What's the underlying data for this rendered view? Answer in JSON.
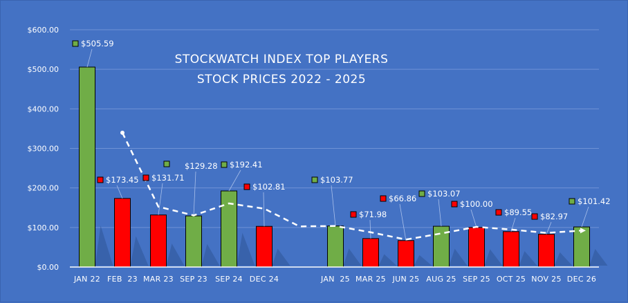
{
  "chart_data": {
    "type": "bar",
    "title": "STOCKWATCH INDEX TOP PLAYERS",
    "subtitle": "STOCK PRICES 2022 - 2025",
    "xlabel": "",
    "ylabel": "",
    "ylim": [
      0,
      600
    ],
    "yticks": [
      0,
      100,
      200,
      300,
      400,
      500,
      600
    ],
    "ytick_labels": [
      "$0.00",
      "$100.00",
      "$200.00",
      "$300.00",
      "$400.00",
      "$500.00",
      "$600.00"
    ],
    "grid": true,
    "legend": "none",
    "categories": [
      "JAN 22",
      "FEB  23",
      "MAR 23",
      "SEP 23",
      "SEP 24",
      "DEC 24",
      "",
      "JAN  25",
      "MAR 25",
      "JUN 25",
      "AUG 25",
      "SEP 25",
      "OCT 25",
      "NOV 25",
      "DEC 26"
    ],
    "values": [
      505.59,
      173.45,
      131.71,
      129.28,
      192.41,
      102.81,
      null,
      103.77,
      71.98,
      66.86,
      103.07,
      100.0,
      89.55,
      82.97,
      101.42
    ],
    "data_labels": [
      "$505.59",
      "$173.45",
      "$131.71",
      "$129.28",
      "$192.41",
      "$102.81",
      "",
      "$103.77",
      "$71.98",
      "$66.86",
      "$103.07",
      "$100.00",
      "$89.55",
      "$82.97",
      "$101.42"
    ],
    "bar_status": [
      "up",
      "down",
      "down",
      "up",
      "up",
      "down",
      null,
      "up",
      "down",
      "down",
      "up",
      "down",
      "down",
      "down",
      "up"
    ],
    "colors": {
      "up": "#70AD47",
      "down": "#FF0000",
      "background": "#4472C4",
      "gridline": "#6f93d6",
      "text": "#FFFFFF",
      "trendline": "#FFFFFF",
      "bar_border": "#000000"
    },
    "trendline": {
      "type": "moving-average",
      "style": "dashed",
      "x_start_category": 1,
      "values": [
        null,
        339.52,
        152.58,
        130.5,
        160.85,
        147.61,
        102.81,
        103.77,
        87.88,
        69.42,
        84.97,
        101.54,
        94.78,
        86.26,
        92.2
      ]
    }
  }
}
